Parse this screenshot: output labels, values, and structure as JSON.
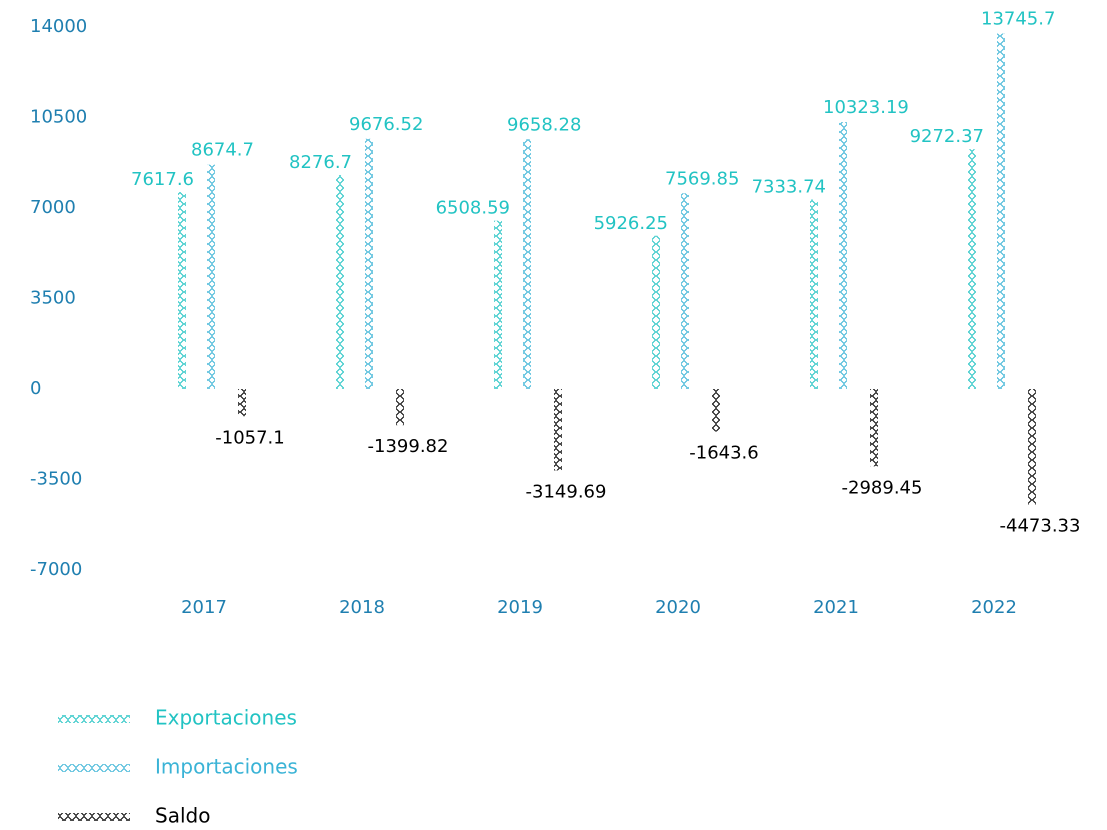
{
  "chart_data": {
    "type": "bar",
    "categories": [
      "2017",
      "2018",
      "2019",
      "2020",
      "2021",
      "2022"
    ],
    "series": [
      {
        "name": "Exportaciones",
        "color": "#22c3c3",
        "values": [
          7617.6,
          8276.7,
          6508.59,
          5926.25,
          7333.74,
          9272.37
        ]
      },
      {
        "name": "Importaciones",
        "color": "#3ab3d6",
        "values": [
          8674.7,
          9676.52,
          9658.28,
          7569.85,
          10323.19,
          13745.7
        ]
      },
      {
        "name": "Saldo",
        "color": "#000000",
        "values": [
          -1057.1,
          -1399.82,
          -3149.69,
          -1643.6,
          -2989.45,
          -4473.33
        ]
      }
    ],
    "ylim": [
      -7000,
      14000
    ],
    "yticks": [
      14000,
      10500,
      7000,
      3500,
      0,
      -3500,
      -7000
    ],
    "grid": false,
    "legend": "bottom-left"
  }
}
